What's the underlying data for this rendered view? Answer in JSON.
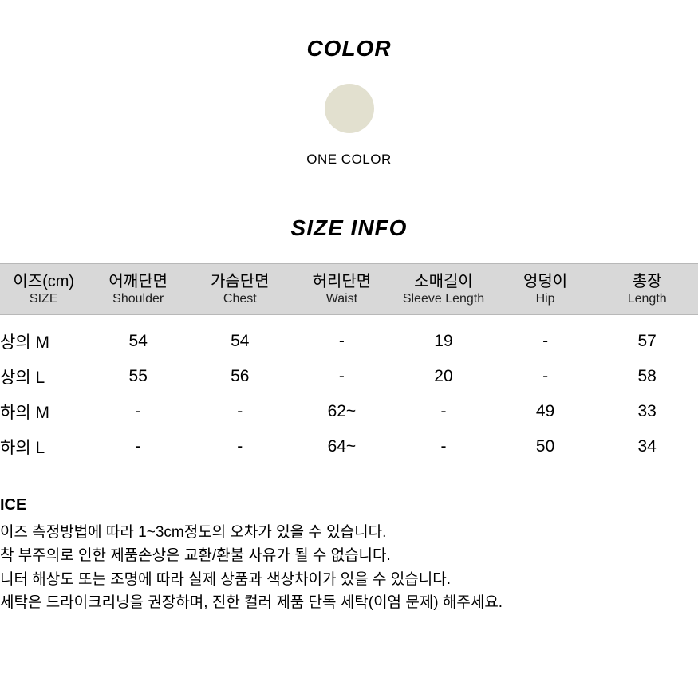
{
  "color": {
    "title": "COLOR",
    "swatch_hex": "#e2e0cf",
    "label": "ONE COLOR"
  },
  "size": {
    "title": "SIZE INFO",
    "columns": [
      {
        "kr": "이즈(cm)",
        "en": "SIZE"
      },
      {
        "kr": "어깨단면",
        "en": "Shoulder"
      },
      {
        "kr": "가슴단면",
        "en": "Chest"
      },
      {
        "kr": "허리단면",
        "en": "Waist"
      },
      {
        "kr": "소매길이",
        "en": "Sleeve Length"
      },
      {
        "kr": "엉덩이",
        "en": "Hip"
      },
      {
        "kr": "총장",
        "en": "Length"
      }
    ],
    "rows": [
      [
        "상의 M",
        "54",
        "54",
        "-",
        "19",
        "-",
        "57"
      ],
      [
        "상의 L",
        "55",
        "56",
        "-",
        "20",
        "-",
        "58"
      ],
      [
        "하의 M",
        "-",
        "-",
        "62~",
        "-",
        "49",
        "33"
      ],
      [
        "하의 L",
        "-",
        "-",
        "64~",
        "-",
        "50",
        "34"
      ]
    ]
  },
  "notice": {
    "title": "ICE",
    "lines": [
      "이즈 측정방법에 따라 1~3cm정도의 오차가 있을 수 있습니다.",
      "착 부주의로 인한 제품손상은 교환/환불 사유가 될 수 없습니다.",
      "니터 해상도 또는 조명에 따라 실제 상품과 색상차이가 있을 수 있습니다.",
      "세탁은 드라이크리닝을 권장하며, 진한 컬러 제품 단독 세탁(이염 문제) 해주세요."
    ]
  },
  "styling": {
    "header_bg": "#d8d8d8",
    "border_color": "#b8b8b8",
    "text_color": "#000000",
    "background_color": "#ffffff"
  }
}
